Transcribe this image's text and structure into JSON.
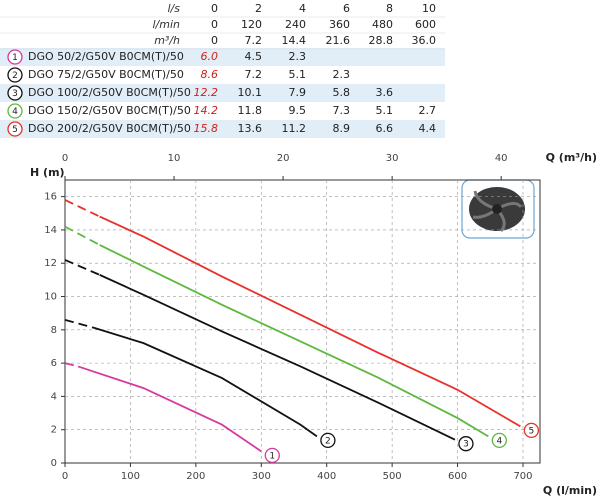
{
  "table": {
    "header": [
      {
        "label": "l/s",
        "cells": [
          "0",
          "2",
          "4",
          "6",
          "8",
          "10"
        ]
      },
      {
        "label": "l/min",
        "cells": [
          "0",
          "120",
          "240",
          "360",
          "480",
          "600"
        ]
      },
      {
        "label": "m³/h",
        "cells": [
          "0",
          "7.2",
          "14.4",
          "21.6",
          "28.8",
          "36.0"
        ]
      }
    ],
    "rows": [
      {
        "num": "1",
        "color": "#d63aa0",
        "model": "DGO 50/2/G50V B0CM(T)/50",
        "cells": [
          "6.0",
          "4.5",
          "2.3"
        ]
      },
      {
        "num": "2",
        "color": "#111111",
        "model": "DGO 75/2/G50V B0CM(T)/50",
        "cells": [
          "8.6",
          "7.2",
          "5.1",
          "2.3"
        ]
      },
      {
        "num": "3",
        "color": "#111111",
        "model": "DGO 100/2/G50V B0CM(T)/50",
        "cells": [
          "12.2",
          "10.1",
          "7.9",
          "5.8",
          "3.6"
        ]
      },
      {
        "num": "4",
        "color": "#5db83f",
        "model": "DGO 150/2/G50V B0CM(T)/50",
        "cells": [
          "14.2",
          "11.8",
          "9.5",
          "7.3",
          "5.1",
          "2.7"
        ]
      },
      {
        "num": "5",
        "color": "#e8302a",
        "model": "DGO 200/2/G50V B0CM(T)/50",
        "cells": [
          "15.8",
          "13.6",
          "11.2",
          "8.9",
          "6.6",
          "4.4"
        ]
      }
    ]
  },
  "chart_data": {
    "type": "line",
    "y_label": "H (m)",
    "x_label": "Q (l/min)",
    "x2_label": "Q (m³/h)",
    "xlim": [
      0,
      726
    ],
    "xticks": [
      0,
      100,
      200,
      300,
      400,
      500,
      600,
      700
    ],
    "x2lim": [
      0,
      43.56
    ],
    "x2ticks": [
      0,
      10,
      20,
      30,
      40
    ],
    "ylim": [
      0,
      17
    ],
    "yticks": [
      0,
      2,
      4,
      6,
      8,
      10,
      12,
      14,
      16
    ],
    "grid": true,
    "series": [
      {
        "name": "1",
        "color": "#d63aa0",
        "x": [
          0,
          20,
          120,
          240,
          300
        ],
        "values": [
          6.0,
          5.8,
          4.5,
          2.3,
          0.7
        ]
      },
      {
        "name": "2",
        "color": "#111111",
        "x": [
          0,
          46,
          120,
          240,
          360,
          385
        ],
        "values": [
          8.6,
          8.1,
          7.2,
          5.1,
          2.3,
          1.6
        ]
      },
      {
        "name": "3",
        "color": "#111111",
        "x": [
          0,
          53,
          120,
          240,
          360,
          480,
          596
        ],
        "values": [
          12.2,
          11.3,
          10.1,
          7.9,
          5.8,
          3.6,
          1.4
        ]
      },
      {
        "name": "4",
        "color": "#5db83f",
        "x": [
          0,
          53,
          120,
          240,
          360,
          480,
          600,
          647
        ],
        "values": [
          14.2,
          13.1,
          11.8,
          9.5,
          7.3,
          5.1,
          2.7,
          1.6
        ]
      },
      {
        "name": "5",
        "color": "#e8302a",
        "x": [
          0,
          53,
          120,
          240,
          360,
          480,
          600,
          696
        ],
        "values": [
          15.8,
          14.8,
          13.6,
          11.2,
          8.9,
          6.6,
          4.4,
          2.2
        ]
      }
    ]
  }
}
